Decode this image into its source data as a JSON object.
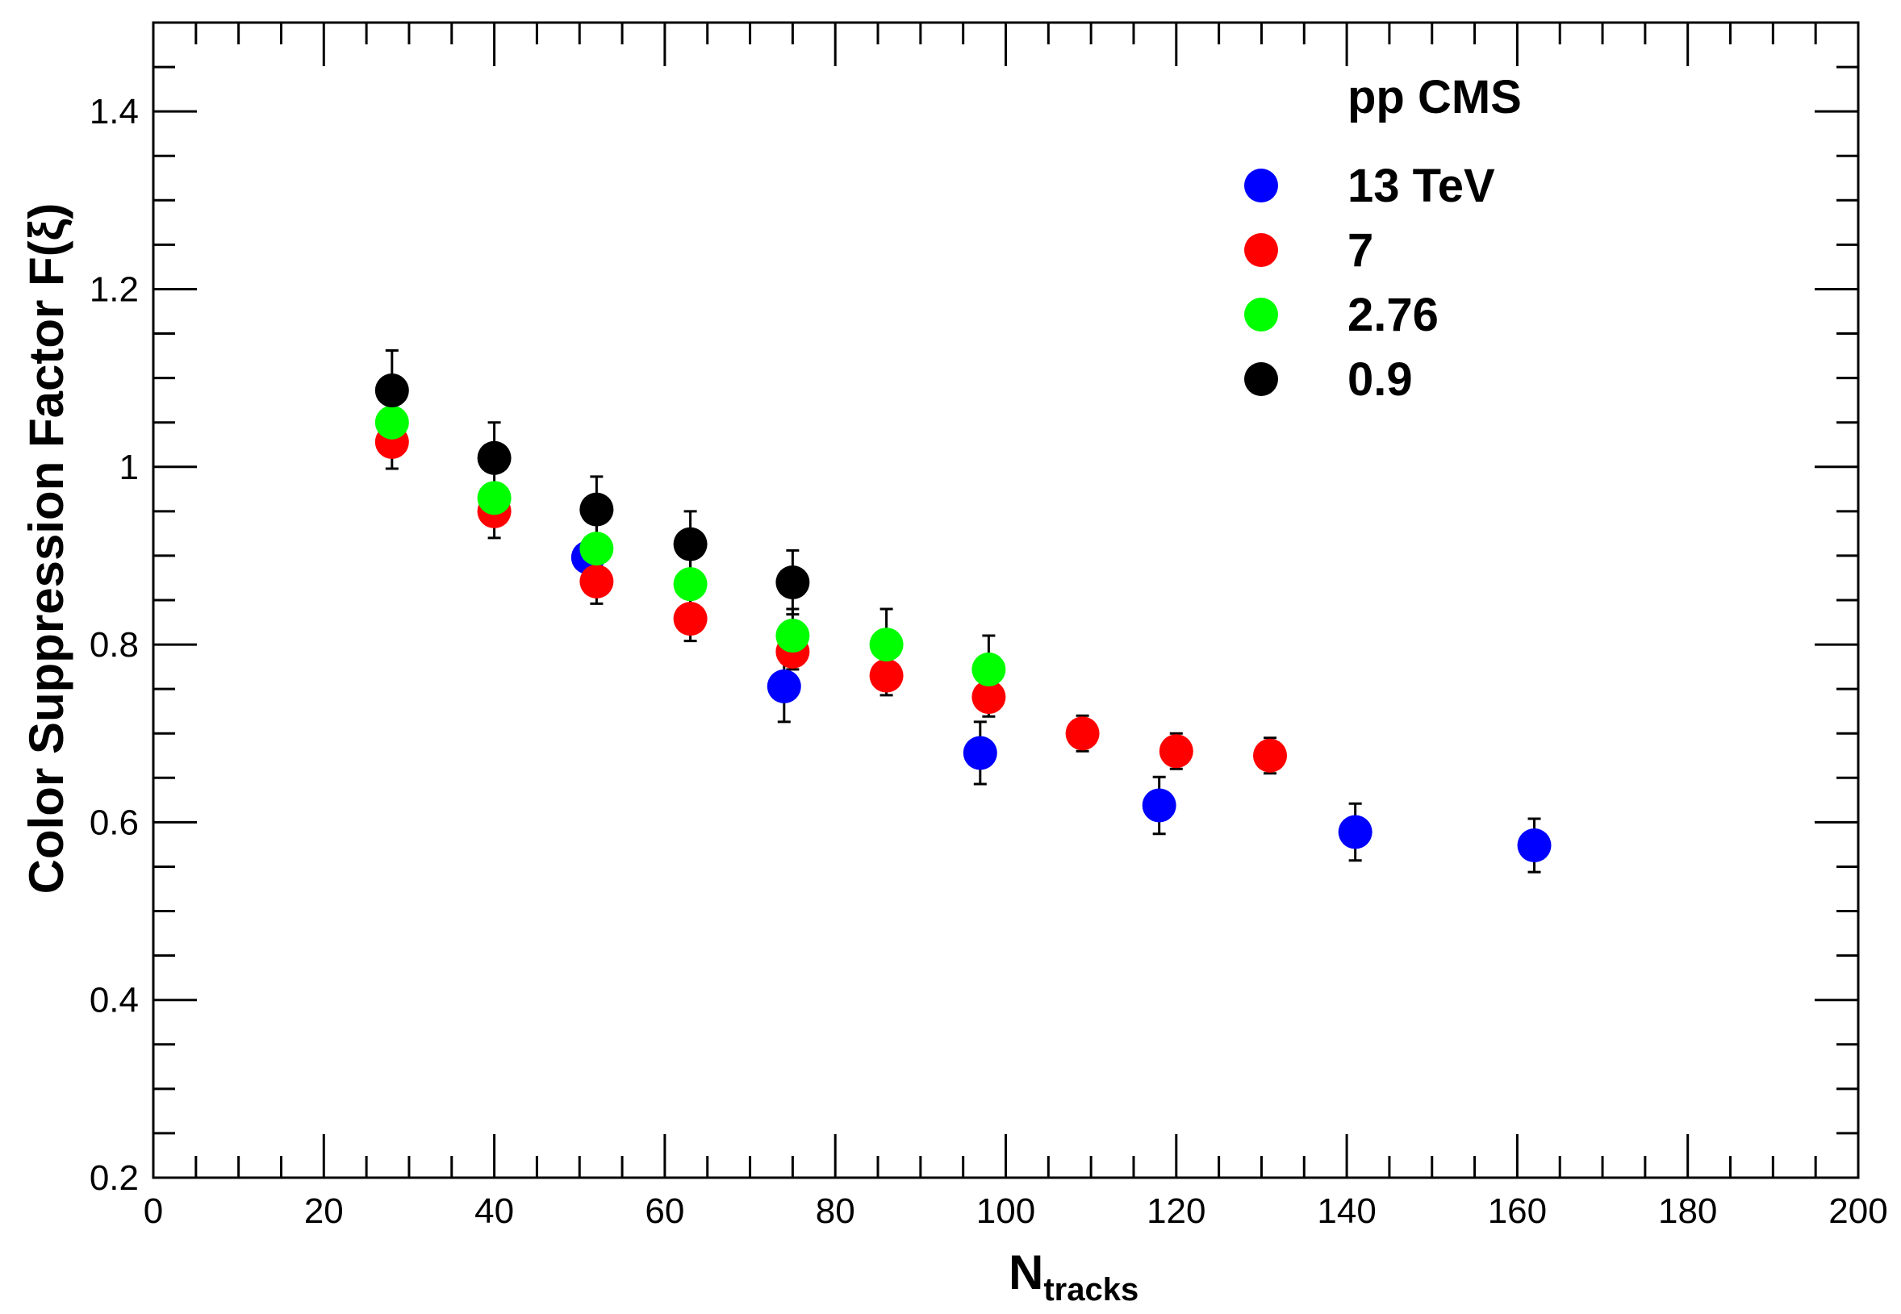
{
  "chart_data": {
    "type": "scatter",
    "title": "",
    "xlabel": {
      "main": "N",
      "sub": "tracks"
    },
    "ylabel": "Color Suppression Factor F(ξ)",
    "xlim": [
      0,
      200
    ],
    "ylim": [
      0.2,
      1.5
    ],
    "x_ticks": [
      0,
      20,
      40,
      60,
      80,
      100,
      120,
      140,
      160,
      180,
      200
    ],
    "x_tick_labels": [
      "0",
      "20",
      "40",
      "60",
      "80",
      "100",
      "120",
      "140",
      "160",
      "180",
      "200"
    ],
    "y_ticks": [
      0.2,
      0.4,
      0.6,
      0.8,
      1.0,
      1.2,
      1.4
    ],
    "y_tick_labels": [
      "0.2",
      "0.4",
      "0.6",
      "0.8",
      "1",
      "1.2",
      "1.4"
    ],
    "grid": false,
    "legend": {
      "title": "pp CMS",
      "position": "top-right"
    },
    "series": [
      {
        "name": "13 TeV",
        "color": "#0000ff",
        "x": [
          51,
          74,
          97,
          118,
          141,
          162
        ],
        "y": [
          0.898,
          0.753,
          0.678,
          0.619,
          0.589,
          0.574
        ],
        "err": [
          0.0,
          0.04,
          0.035,
          0.032,
          0.032,
          0.03
        ]
      },
      {
        "name": "7",
        "color": "#ff0000",
        "x": [
          28,
          40,
          52,
          63,
          75,
          86,
          98,
          109,
          120,
          131
        ],
        "y": [
          1.028,
          0.95,
          0.871,
          0.829,
          0.792,
          0.765,
          0.741,
          0.7,
          0.68,
          0.675
        ],
        "err": [
          0.03,
          0.03,
          0.025,
          0.025,
          0.02,
          0.022,
          0.022,
          0.02,
          0.02,
          0.02
        ]
      },
      {
        "name": "2.76",
        "color": "#00ff00",
        "x": [
          28,
          40,
          52,
          63,
          75,
          86,
          98
        ],
        "y": [
          1.05,
          0.965,
          0.908,
          0.868,
          0.81,
          0.8,
          0.772
        ],
        "err": [
          0.01,
          0.01,
          0.03,
          0.03,
          0.03,
          0.04,
          0.038
        ]
      },
      {
        "name": "0.9",
        "color": "#000000",
        "x": [
          28,
          40,
          52,
          63,
          75
        ],
        "y": [
          1.086,
          1.01,
          0.952,
          0.913,
          0.87
        ],
        "err": [
          0.045,
          0.04,
          0.037,
          0.037,
          0.036
        ]
      }
    ]
  }
}
